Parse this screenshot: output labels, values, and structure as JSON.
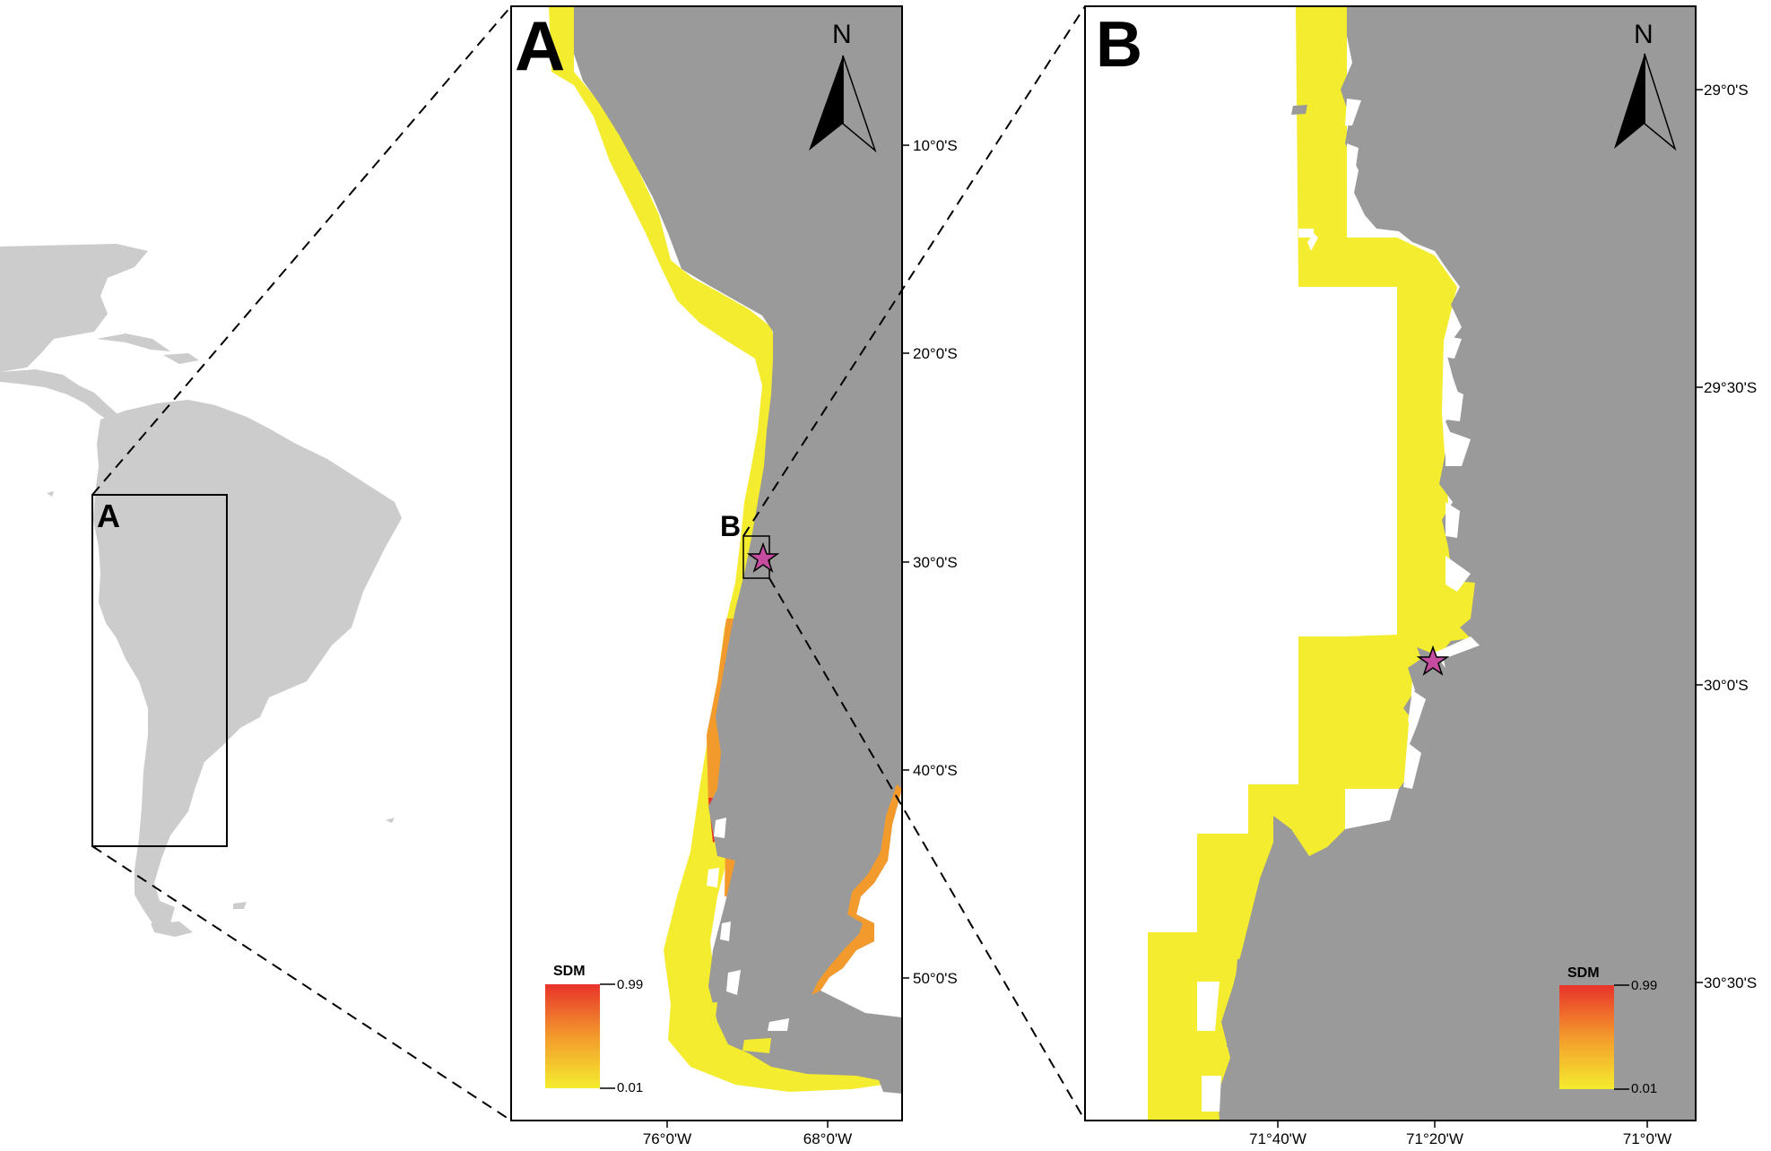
{
  "overview": {
    "inset_label": "A"
  },
  "panel_a": {
    "letter": "A",
    "zoom_label": "B",
    "north": "N",
    "lat_ticks": [
      "10°0'S",
      "20°0'S",
      "30°0'S",
      "40°0'S",
      "50°0'S"
    ],
    "lon_ticks": [
      "76°0'W",
      "68°0'W"
    ],
    "legend": {
      "title": "SDM",
      "max": "0.99",
      "min": "0.01"
    }
  },
  "panel_b": {
    "letter": "B",
    "north": "N",
    "lat_ticks": [
      "29°0'S",
      "29°30'S",
      "30°0'S",
      "30°30'S"
    ],
    "lon_ticks": [
      "71°40'W",
      "71°20'W",
      "71°0'W"
    ],
    "legend": {
      "title": "SDM",
      "max": "0.99",
      "min": "0.01"
    }
  },
  "colors": {
    "land_overview": "#cccccc",
    "land": "#9a9a9b",
    "sdm_low": "#f4ec2e",
    "sdm_mid": "#f39a2c",
    "sdm_high": "#e8332b",
    "site_star": "#c54c9f"
  },
  "marker": {
    "name": "site-star-icon"
  }
}
